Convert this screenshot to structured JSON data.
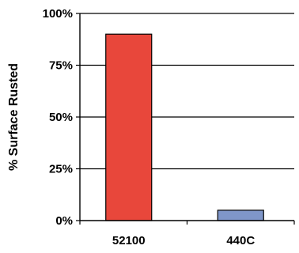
{
  "chart_data": {
    "type": "bar",
    "title": "",
    "xlabel": "",
    "ylabel": "% Surface Rusted",
    "categories": [
      "52100",
      "440C"
    ],
    "values": [
      90,
      5
    ],
    "ylim": [
      0,
      100
    ],
    "yticks": [
      0,
      25,
      50,
      75,
      100
    ],
    "ytick_labels": [
      "0%",
      "25%",
      "50%",
      "75%",
      "100%"
    ],
    "grid": true,
    "legend": "none",
    "colors": {
      "bars": [
        "#e8473b",
        "#7f96c9"
      ],
      "bar_stroke": "#000000",
      "grid": "#000000",
      "axis": "#000000"
    }
  }
}
